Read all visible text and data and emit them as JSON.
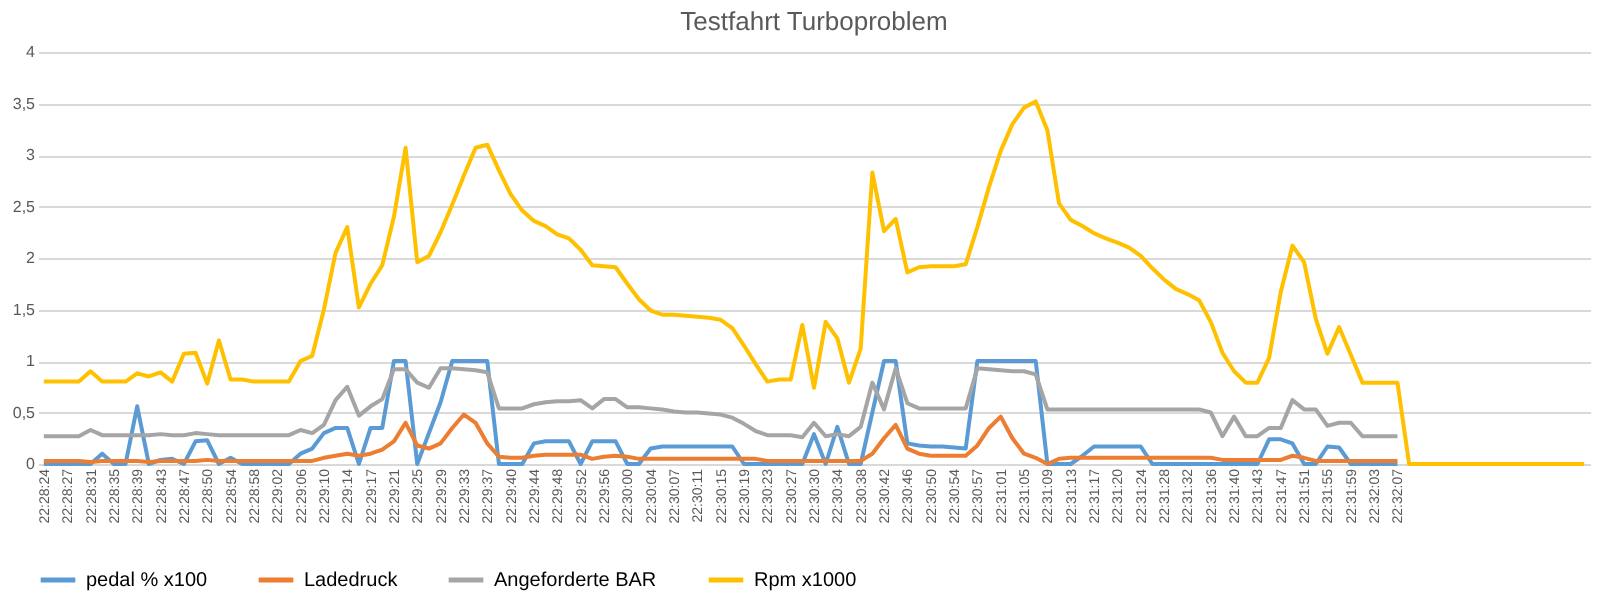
{
  "chart_data": {
    "type": "line",
    "title": "Testfahrt Turboproblem",
    "categories": [
      "22:28:24",
      null,
      "22:28:27",
      null,
      "22:28:31",
      null,
      "22:28:35",
      null,
      "22:28:39",
      null,
      "22:28:43",
      null,
      "22:28:47",
      null,
      "22:28:50",
      null,
      "22:28:54",
      null,
      "22:28:58",
      null,
      "22:29:02",
      null,
      "22:29:06",
      null,
      "22:29:10",
      null,
      "22:29:14",
      null,
      "22:29:17",
      null,
      "22:29:21",
      null,
      "22:29:25",
      null,
      "22:29:29",
      null,
      "22:29:33",
      null,
      "22:29:37",
      null,
      "22:29:40",
      null,
      "22:29:44",
      null,
      "22:29:48",
      null,
      "22:29:52",
      null,
      "22:29:56",
      null,
      "22:30:00",
      null,
      "22:30:04",
      null,
      "22:30:07",
      null,
      "22:30:11",
      null,
      "22:30:15",
      null,
      "22:30:19",
      null,
      "22:30:23",
      null,
      "22:30:27",
      null,
      "22:30:30",
      null,
      "22:30:34",
      null,
      "22:30:38",
      null,
      "22:30:42",
      null,
      "22:30:46",
      null,
      "22:30:50",
      null,
      "22:30:54",
      null,
      "22:30:57",
      null,
      "22:31:01",
      null,
      "22:31:05",
      null,
      "22:31:09",
      null,
      "22:31:13",
      null,
      "22:31:17",
      null,
      "22:31:20",
      null,
      "22:31:24",
      null,
      "22:31:28",
      null,
      "22:31:32",
      null,
      "22:31:36",
      null,
      "22:31:40",
      null,
      "22:31:43",
      null,
      "22:31:47",
      null,
      "22:31:51",
      null,
      "22:31:55",
      null,
      "22:31:59",
      null,
      "22:32:03",
      null,
      "22:32:07",
      null,
      null,
      null,
      null,
      null,
      null,
      null,
      null,
      null,
      null,
      null,
      null,
      null,
      null,
      null,
      null
    ],
    "series": [
      {
        "name": "pedal % x100",
        "color": "#5b9bd5",
        "values": [
          0,
          0,
          0,
          0,
          0,
          0.1,
          0,
          0,
          0.56,
          0,
          0.04,
          0.05,
          0,
          0.22,
          0.23,
          0,
          0.06,
          0,
          0,
          0,
          0,
          0,
          0.1,
          0.15,
          0.3,
          0.35,
          0.35,
          0,
          0.35,
          0.35,
          1.0,
          1.0,
          0,
          0.3,
          0.6,
          1.0,
          1.0,
          1.0,
          1.0,
          0,
          0,
          0,
          0.2,
          0.22,
          0.22,
          0.22,
          0,
          0.22,
          0.22,
          0.22,
          0,
          0,
          0.15,
          0.17,
          0.17,
          0.17,
          0.17,
          0.17,
          0.17,
          0.17,
          0,
          0,
          0,
          0,
          0,
          0,
          0.29,
          0,
          0.36,
          0,
          0,
          0.5,
          1.0,
          1.0,
          0.2,
          0.18,
          0.17,
          0.17,
          0.16,
          0.15,
          1.0,
          1.0,
          1.0,
          1.0,
          1.0,
          1.0,
          0,
          0,
          0,
          0.08,
          0.17,
          0.17,
          0.17,
          0.17,
          0.17,
          0,
          0,
          0,
          0,
          0,
          0,
          0,
          0,
          0,
          0,
          0.24,
          0.24,
          0.2,
          0,
          0,
          0.17,
          0.16,
          0,
          0,
          0,
          0,
          0,
          null,
          null,
          null,
          null,
          null,
          null,
          null,
          null,
          null,
          null,
          null,
          null,
          null,
          null,
          null,
          null
        ]
      },
      {
        "name": "Ladedruck",
        "color": "#ed7d31",
        "values": [
          0.03,
          0.03,
          0.03,
          0.03,
          0.02,
          0.03,
          0.03,
          0.03,
          0.03,
          0.02,
          0.03,
          0.03,
          0.03,
          0.03,
          0.04,
          0.03,
          0.03,
          0.03,
          0.03,
          0.03,
          0.03,
          0.03,
          0.03,
          0.03,
          0.06,
          0.08,
          0.1,
          0.08,
          0.1,
          0.14,
          0.22,
          0.4,
          0.18,
          0.15,
          0.2,
          0.35,
          0.48,
          0.4,
          0.2,
          0.07,
          0.06,
          0.06,
          0.08,
          0.09,
          0.09,
          0.09,
          0.09,
          0.05,
          0.07,
          0.08,
          0.07,
          0.05,
          0.05,
          0.05,
          0.05,
          0.05,
          0.05,
          0.05,
          0.05,
          0.05,
          0.05,
          0.05,
          0.03,
          0.03,
          0.03,
          0.03,
          0.03,
          0.03,
          0.03,
          0.03,
          0.03,
          0.1,
          0.25,
          0.38,
          0.15,
          0.1,
          0.08,
          0.08,
          0.08,
          0.08,
          0.18,
          0.35,
          0.46,
          0.25,
          0.1,
          0.06,
          0,
          0.05,
          0.06,
          0.06,
          0.06,
          0.06,
          0.06,
          0.06,
          0.06,
          0.06,
          0.06,
          0.06,
          0.06,
          0.06,
          0.06,
          0.04,
          0.04,
          0.04,
          0.04,
          0.04,
          0.04,
          0.08,
          0.06,
          0.03,
          0.03,
          0.03,
          0.03,
          0.03,
          0.03,
          0.03,
          0.03,
          null,
          null,
          null,
          null,
          null,
          null,
          null,
          null,
          null,
          null,
          null,
          null,
          null,
          null,
          null,
          null
        ]
      },
      {
        "name": "Angeforderte BAR",
        "color": "#a5a5a5",
        "values": [
          0.27,
          0.27,
          0.27,
          0.27,
          0.33,
          0.28,
          0.28,
          0.28,
          0.28,
          0.28,
          0.29,
          0.28,
          0.28,
          0.3,
          0.29,
          0.28,
          0.28,
          0.28,
          0.28,
          0.28,
          0.28,
          0.28,
          0.33,
          0.3,
          0.38,
          0.62,
          0.75,
          0.47,
          0.56,
          0.63,
          0.92,
          0.92,
          0.79,
          0.74,
          0.93,
          0.93,
          0.92,
          0.91,
          0.89,
          0.54,
          0.54,
          0.54,
          0.58,
          0.6,
          0.61,
          0.61,
          0.62,
          0.54,
          0.63,
          0.63,
          0.55,
          0.55,
          0.54,
          0.53,
          0.51,
          0.5,
          0.5,
          0.49,
          0.48,
          0.45,
          0.39,
          0.32,
          0.28,
          0.28,
          0.28,
          0.26,
          0.4,
          0.27,
          0.29,
          0.27,
          0.36,
          0.79,
          0.53,
          0.93,
          0.59,
          0.54,
          0.54,
          0.54,
          0.54,
          0.54,
          0.93,
          0.92,
          0.91,
          0.9,
          0.9,
          0.87,
          0.53,
          0.53,
          0.53,
          0.53,
          0.53,
          0.53,
          0.53,
          0.53,
          0.53,
          0.53,
          0.53,
          0.53,
          0.53,
          0.53,
          0.5,
          0.27,
          0.46,
          0.27,
          0.27,
          0.35,
          0.35,
          0.62,
          0.53,
          0.53,
          0.37,
          0.4,
          0.4,
          0.27,
          0.27,
          0.27,
          0.27,
          null,
          null,
          null,
          null,
          null,
          null,
          null,
          null,
          null,
          null,
          null,
          null,
          null,
          null,
          null,
          null
        ]
      },
      {
        "name": "Rpm x1000",
        "color": "#ffc000",
        "values": [
          0.8,
          0.8,
          0.8,
          0.8,
          0.9,
          0.8,
          0.8,
          0.8,
          0.88,
          0.85,
          0.89,
          0.8,
          1.07,
          1.08,
          0.78,
          1.2,
          0.82,
          0.82,
          0.8,
          0.8,
          0.8,
          0.8,
          1.0,
          1.05,
          1.5,
          2.05,
          2.3,
          1.52,
          1.75,
          1.93,
          2.4,
          3.07,
          1.96,
          2.02,
          2.25,
          2.52,
          2.8,
          3.07,
          3.1,
          2.85,
          2.62,
          2.46,
          2.36,
          2.31,
          2.23,
          2.19,
          2.08,
          1.93,
          1.92,
          1.91,
          1.75,
          1.6,
          1.49,
          1.45,
          1.45,
          1.44,
          1.43,
          1.42,
          1.4,
          1.32,
          1.15,
          0.97,
          0.8,
          0.82,
          0.82,
          1.35,
          0.74,
          1.38,
          1.22,
          0.79,
          1.12,
          2.83,
          2.26,
          2.38,
          1.86,
          1.91,
          1.92,
          1.92,
          1.92,
          1.94,
          2.3,
          2.69,
          3.04,
          3.3,
          3.46,
          3.52,
          3.24,
          2.53,
          2.37,
          2.31,
          2.24,
          2.19,
          2.15,
          2.1,
          2.02,
          1.9,
          1.79,
          1.7,
          1.65,
          1.59,
          1.38,
          1.08,
          0.9,
          0.79,
          0.79,
          1.03,
          1.67,
          2.12,
          1.96,
          1.41,
          1.07,
          1.33,
          1.06,
          0.79,
          0.79,
          0.79,
          0.79,
          0,
          0,
          0,
          0,
          0,
          0,
          0,
          0,
          0,
          0,
          0,
          0,
          0,
          0,
          0,
          0
        ]
      }
    ],
    "ylim": [
      0,
      4
    ],
    "yticks": [
      0,
      {
        "value": 0.5,
        "label": "0,5"
      },
      1,
      {
        "value": 1.5,
        "label": "1,5"
      },
      2,
      {
        "value": 2.5,
        "label": "2,5"
      },
      3,
      {
        "value": 3.5,
        "label": "3,5"
      },
      4
    ],
    "grid": "y",
    "legend": "bottom",
    "marker": "none",
    "line_style": "solid"
  }
}
